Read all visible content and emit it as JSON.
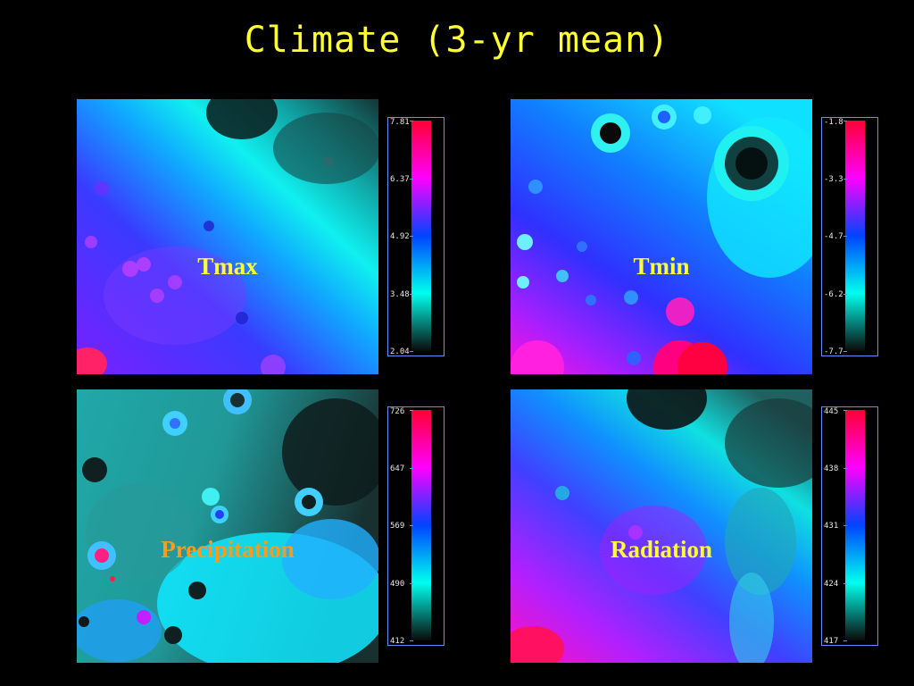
{
  "slide": {
    "title": "Climate (3-yr mean)"
  },
  "label_colors": {
    "yellow": "#ffff33",
    "orange": "#ff9a1a"
  },
  "colormap": [
    "#0a0a0a",
    "#00ffee",
    "#0044ff",
    "#ff00ff",
    "#ff0033"
  ],
  "chart_data": [
    {
      "type": "heatmap",
      "label": "Tmax",
      "label_color": "yellow",
      "colorbar_ticks": [
        "7.81",
        "6.37",
        "4.92",
        "3.48",
        "2.04"
      ],
      "range": [
        2.04,
        7.81
      ]
    },
    {
      "type": "heatmap",
      "label": "Tmin",
      "label_color": "yellow",
      "colorbar_ticks": [
        "-1.8",
        "-3.3",
        "-4.7",
        "-6.2",
        "-7.7"
      ],
      "range": [
        -7.7,
        -1.8
      ]
    },
    {
      "type": "heatmap",
      "label": "Precipitation",
      "label_color": "orange",
      "colorbar_ticks": [
        "726",
        "647",
        "569",
        "490",
        "412"
      ],
      "range": [
        412,
        726
      ]
    },
    {
      "type": "heatmap",
      "label": "Radiation",
      "label_color": "yellow",
      "colorbar_ticks": [
        "445",
        "438",
        "431",
        "424",
        "417"
      ],
      "range": [
        417,
        445
      ]
    }
  ]
}
